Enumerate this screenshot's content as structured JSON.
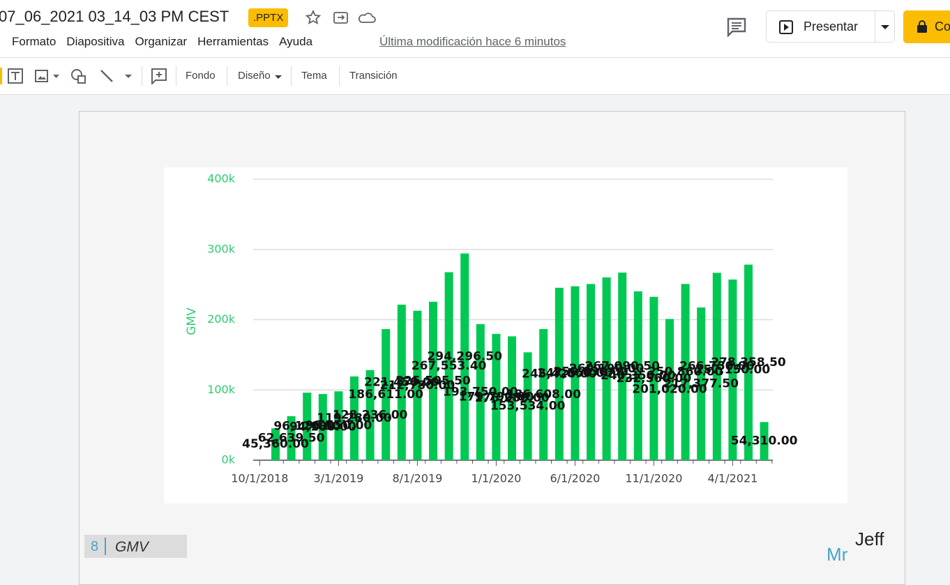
{
  "header": {
    "title": "07_06_2021 03_14_03 PM CEST",
    "badge": ".PPTX",
    "menu": [
      "Formato",
      "Diapositiva",
      "Organizar",
      "Herramientas",
      "Ayuda"
    ],
    "last_modified": "Última modificación hace 6 minutos",
    "present_button": "Presentar",
    "share_button": "Co"
  },
  "toolbar": {
    "items": [
      "Fondo",
      "Diseño",
      "Tema",
      "Transición"
    ]
  },
  "slide": {
    "number": "8",
    "title": "GMV",
    "logo_mr": "Mr",
    "logo_jeff": "Jeff"
  },
  "chart_data": {
    "type": "bar",
    "y_label": "GMV",
    "color": "#00c853",
    "grid": true,
    "categories": [
      "11/1/2018",
      "12/1/2018",
      "1/1/2019",
      "2/1/2019",
      "3/1/2019",
      "4/1/2019",
      "5/1/2019",
      "6/1/2019",
      "7/1/2019",
      "8/1/2019",
      "9/1/2019",
      "10/1/2019",
      "11/1/2019",
      "12/1/2019",
      "1/1/2020",
      "2/1/2020",
      "3/1/2020",
      "4/1/2020",
      "5/1/2020",
      "6/1/2020",
      "7/1/2020",
      "8/1/2020",
      "9/1/2020",
      "10/1/2020",
      "11/1/2020",
      "12/1/2020",
      "1/1/2021",
      "2/1/2021",
      "3/1/2021",
      "4/1/2021",
      "5/1/2021",
      "6/1/2021"
    ],
    "values": [
      45360,
      62639.5,
      96120,
      94180,
      98050,
      119280,
      128236,
      186611,
      221450,
      212780,
      225505.5,
      267553.4,
      294296.5,
      193750,
      179790,
      176280,
      153534,
      186608,
      245420,
      247560,
      250830,
      260190,
      267090.5,
      240350,
      232560,
      201020,
      250860,
      217377.5,
      266750,
      257150,
      278358.5,
      54310
    ],
    "value_labels": [
      "45,360.00",
      "62,639.50",
      "96,120.00",
      "94,180.00",
      "98,050.00",
      "119,280.00",
      "128,236.00",
      "186,611.00",
      "221,450.00",
      "212,780.00",
      "225,505.50",
      "267,553.40",
      "294,296.50",
      "193,750.00",
      "179,790.00",
      "176,280.00",
      "153,534.00",
      "186,608.00",
      "245,420.00",
      "247,560.00",
      "250,830.00",
      "260,190.00",
      "267,090.50",
      "240,350.00",
      "232,560.00",
      "201,020.00",
      "250,860.00",
      "217,377.50",
      "266,750.00",
      "257,150.00",
      "278,358.50",
      "54,310.00"
    ],
    "xticks": [
      "10/1/2018",
      "3/1/2019",
      "8/1/2019",
      "1/1/2020",
      "6/1/2020",
      "11/1/2020",
      "4/1/2021"
    ],
    "ylim": [
      0,
      400000
    ],
    "yticks": [
      {
        "value": 0,
        "label": "0k"
      },
      {
        "value": 100000,
        "label": "100k"
      },
      {
        "value": 200000,
        "label": "200k"
      },
      {
        "value": 300000,
        "label": "300k"
      },
      {
        "value": 400000,
        "label": "400k"
      }
    ]
  }
}
